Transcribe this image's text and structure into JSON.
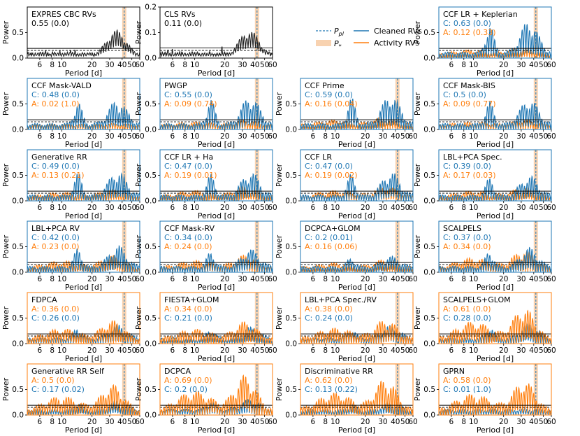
{
  "colors": {
    "cleaned": "#1f77b4",
    "activity": "#ff7f0e",
    "raw": "#222222",
    "band": "#f8d2b0",
    "pline": "#1f77b4"
  },
  "legend": {
    "entries": [
      {
        "label": "P_pl",
        "style": "dashed-blue"
      },
      {
        "label": "P_*",
        "style": "shaded-band"
      },
      {
        "label": "Cleaned RVs",
        "style": "solid-blue"
      },
      {
        "label": "Activity RVs",
        "style": "solid-orange"
      }
    ]
  },
  "chart_data": {
    "type": "line",
    "x_axis": {
      "scale": "log",
      "label": "Period [d]",
      "range": [
        4.5,
        60
      ],
      "ticks": [
        6,
        8,
        10,
        20,
        30,
        40,
        50,
        60
      ]
    },
    "y_label": "Power",
    "planet_period": 42,
    "stellar_rotation_band": [
      40,
      44
    ],
    "panels": [
      {
        "title": "EXPRES CBC RVs",
        "line1": "0.55 (0.0)",
        "line2": "",
        "ylim": [
          0,
          1.0
        ],
        "yticks": [
          "0.0",
          "0.5"
        ],
        "primary": "raw",
        "frame": "black",
        "fap": [
          0.15,
          0.19
        ]
      },
      {
        "title": "CLS RVs",
        "line1": "0.11 (0.0)",
        "line2": "",
        "ylim": [
          0,
          0.2
        ],
        "yticks": [
          "0.0",
          "0.1",
          "0.2"
        ],
        "primary": "raw",
        "frame": "black",
        "fap": [
          0.03,
          0.04
        ]
      },
      {
        "title": "CCF LR + Keplerian",
        "line1": "C: 0.63 (0.0)",
        "line2": "A: 0.12 (0.33)",
        "ylim": [
          0,
          1.0
        ],
        "yticks": [
          "0.0",
          "0.5"
        ],
        "primary": "cleaned",
        "frame": "cleaned",
        "fap": [
          0.15,
          0.19
        ]
      },
      {
        "title": "CCF Mask-VALD",
        "line1": "C: 0.48 (0.0)",
        "line2": "A: 0.02 (1.0)",
        "ylim": [
          0,
          1.0
        ],
        "yticks": [
          "0.0",
          "0.5"
        ],
        "primary": "cleaned",
        "frame": "cleaned",
        "fap": [
          0.15,
          0.19
        ]
      },
      {
        "title": "PWGP",
        "line1": "C: 0.55 (0.0)",
        "line2": "A: 0.09 (0.74)",
        "ylim": [
          0,
          1.0
        ],
        "yticks": [
          "0.0",
          "0.5"
        ],
        "primary": "cleaned",
        "frame": "cleaned",
        "fap": [
          0.15,
          0.19
        ]
      },
      {
        "title": "CCF Prime",
        "line1": "C: 0.59 (0.0)",
        "line2": "A: 0.16 (0.04)",
        "ylim": [
          0,
          1.0
        ],
        "yticks": [
          "0.0",
          "0.5"
        ],
        "primary": "cleaned",
        "frame": "cleaned",
        "fap": [
          0.15,
          0.19
        ]
      },
      {
        "title": "CCF Mask-BIS",
        "line1": "C: 0.5 (0.0)",
        "line2": "A: 0.09 (0.77)",
        "ylim": [
          0,
          1.0
        ],
        "yticks": [
          "0.0",
          "0.5"
        ],
        "primary": "cleaned",
        "frame": "cleaned",
        "fap": [
          0.15,
          0.19
        ]
      },
      {
        "title": "Generative RR",
        "line1": "C: 0.49 (0.0)",
        "line2": "A: 0.13 (0.21)",
        "ylim": [
          0,
          1.0
        ],
        "yticks": [
          "0.0",
          "0.5"
        ],
        "primary": "cleaned",
        "frame": "cleaned",
        "fap": [
          0.15,
          0.19
        ]
      },
      {
        "title": "CCF LR + Ha",
        "line1": "C: 0.47 (0.0)",
        "line2": "A: 0.19 (0.01)",
        "ylim": [
          0,
          1.0
        ],
        "yticks": [
          "0.0",
          "0.5"
        ],
        "primary": "cleaned",
        "frame": "cleaned",
        "fap": [
          0.15,
          0.19
        ]
      },
      {
        "title": "CCF LR",
        "line1": "C: 0.47 (0.0)",
        "line2": "A: 0.19 (0.02)",
        "ylim": [
          0,
          1.0
        ],
        "yticks": [
          "0.0",
          "0.5"
        ],
        "primary": "cleaned",
        "frame": "cleaned",
        "fap": [
          0.15,
          0.19
        ]
      },
      {
        "title": "LBL+PCA Spec.",
        "line1": "C: 0.39 (0.0)",
        "line2": "A: 0.17 (0.03)",
        "ylim": [
          0,
          1.0
        ],
        "yticks": [
          "0.0",
          "0.5"
        ],
        "primary": "cleaned",
        "frame": "cleaned",
        "fap": [
          0.15,
          0.19
        ]
      },
      {
        "title": "LBL+PCA RV",
        "line1": "C: 0.42 (0.0)",
        "line2": "A: 0.23 (0.0)",
        "ylim": [
          0,
          1.0
        ],
        "yticks": [
          "0.0",
          "0.5"
        ],
        "primary": "cleaned",
        "frame": "cleaned",
        "fap": [
          0.15,
          0.19
        ]
      },
      {
        "title": "CCF Mask-RV",
        "line1": "C: 0.34 (0.0)",
        "line2": "A: 0.24 (0.0)",
        "ylim": [
          0,
          1.0
        ],
        "yticks": [
          "0.0",
          "0.5"
        ],
        "primary": "cleaned",
        "frame": "cleaned",
        "fap": [
          0.15,
          0.19
        ]
      },
      {
        "title": "DCPCA+GLOM",
        "line1": "C: 0.2 (0.01)",
        "line2": "A: 0.16 (0.06)",
        "ylim": [
          0,
          1.0
        ],
        "yticks": [
          "0.0",
          "0.5"
        ],
        "primary": "cleaned",
        "frame": "cleaned",
        "fap": [
          0.15,
          0.19
        ]
      },
      {
        "title": "SCALPELS",
        "line1": "C: 0.37 (0.0)",
        "line2": "A: 0.34 (0.0)",
        "ylim": [
          0,
          1.0
        ],
        "yticks": [
          "0.0",
          "0.5"
        ],
        "primary": "cleaned",
        "frame": "cleaned",
        "fap": [
          0.15,
          0.19
        ]
      },
      {
        "title": "FDPCA",
        "line1": "A: 0.36 (0.0)",
        "line2": "C: 0.26 (0.0)",
        "ylim": [
          0,
          1.0
        ],
        "yticks": [
          "0.0",
          "0.5"
        ],
        "primary": "activity",
        "frame": "activity",
        "fap": [
          0.15,
          0.19
        ]
      },
      {
        "title": "FIESTA+GLOM",
        "line1": "A: 0.34 (0.0)",
        "line2": "C: 0.21 (0.0)",
        "ylim": [
          0,
          1.0
        ],
        "yticks": [
          "0.0",
          "0.5"
        ],
        "primary": "activity",
        "frame": "activity",
        "fap": [
          0.15,
          0.19
        ]
      },
      {
        "title": "LBL+PCA Spec./RV",
        "line1": "A: 0.38 (0.0)",
        "line2": "C: 0.24 (0.0)",
        "ylim": [
          0,
          1.0
        ],
        "yticks": [
          "0.0",
          "0.5"
        ],
        "primary": "activity",
        "frame": "activity",
        "fap": [
          0.15,
          0.19
        ]
      },
      {
        "title": "SCALPELS+GLOM",
        "line1": "A: 0.61 (0.0)",
        "line2": "C: 0.28 (0.0)",
        "ylim": [
          0,
          1.0
        ],
        "yticks": [
          "0.0",
          "0.5"
        ],
        "primary": "activity",
        "frame": "activity",
        "fap": [
          0.15,
          0.19
        ]
      },
      {
        "title": "Generative RR Self",
        "line1": "A: 0.5 (0.0)",
        "line2": "C: 0.17 (0.02)",
        "ylim": [
          0,
          1.0
        ],
        "yticks": [
          "0.0",
          "0.5"
        ],
        "primary": "activity",
        "frame": "activity",
        "fap": [
          0.15,
          0.19
        ]
      },
      {
        "title": "DCPCA",
        "line1": "A: 0.69 (0.0)",
        "line2": "C: 0.2 (0.0)",
        "ylim": [
          0,
          1.0
        ],
        "yticks": [
          "0.0",
          "0.5"
        ],
        "primary": "activity",
        "frame": "activity",
        "fap": [
          0.15,
          0.19
        ]
      },
      {
        "title": "Discriminative RR",
        "line1": "A: 0.62 (0.0)",
        "line2": "C: 0.13 (0.22)",
        "ylim": [
          0,
          1.0
        ],
        "yticks": [
          "0.0",
          "0.5"
        ],
        "primary": "activity",
        "frame": "activity",
        "fap": [
          0.15,
          0.19
        ]
      },
      {
        "title": "GPRN",
        "line1": "A: 0.58 (0.0)",
        "line2": "C: 0.01 (1.0)",
        "ylim": [
          0,
          1.0
        ],
        "yticks": [
          "0.0",
          "0.5"
        ],
        "primary": "activity",
        "frame": "activity",
        "fap": [
          0.15,
          0.19
        ]
      }
    ]
  }
}
